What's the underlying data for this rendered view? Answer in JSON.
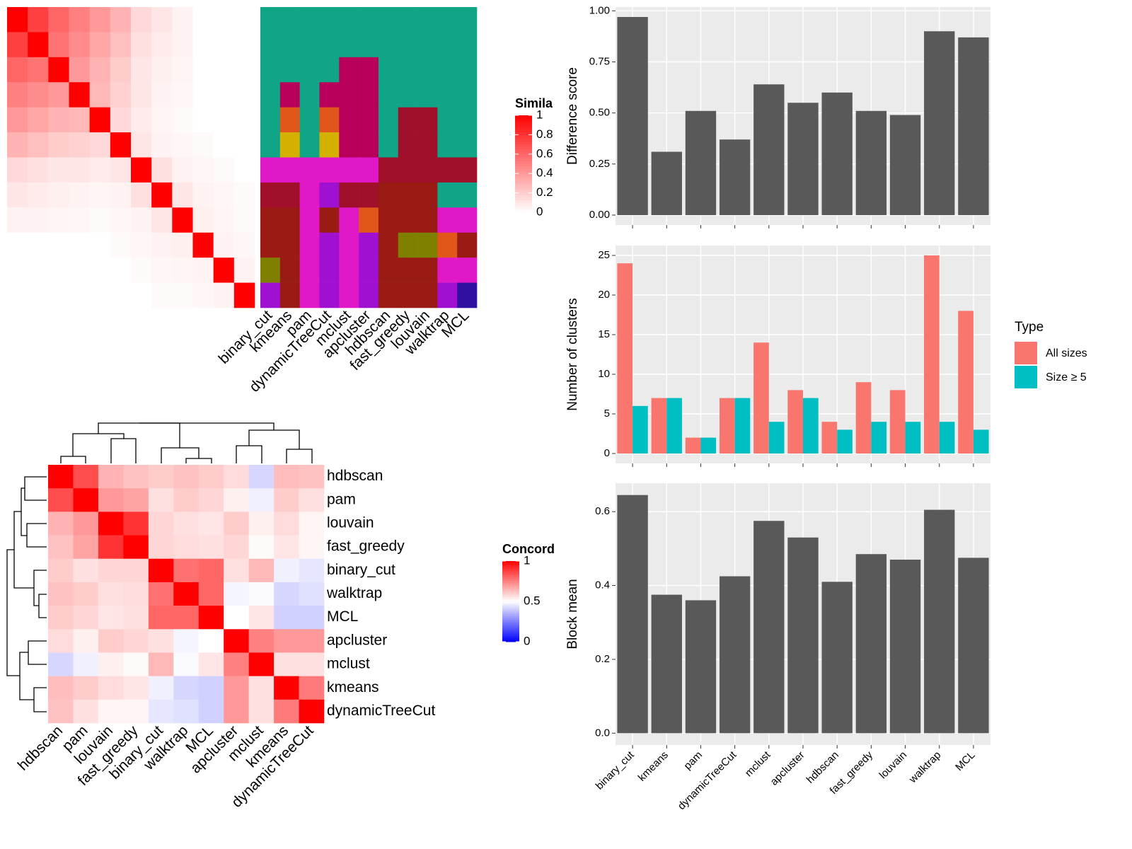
{
  "chart_data": [
    {
      "type": "heatmap",
      "values": [
        [
          1,
          0.75,
          0.6,
          0.5,
          0.4,
          0.3,
          0.15,
          0.1,
          0.05,
          0,
          0,
          0
        ],
        [
          0.75,
          1,
          0.55,
          0.45,
          0.35,
          0.25,
          0.12,
          0.08,
          0.05,
          0,
          0,
          0
        ],
        [
          0.6,
          0.55,
          1,
          0.4,
          0.3,
          0.2,
          0.1,
          0.06,
          0.04,
          0,
          0,
          0
        ],
        [
          0.5,
          0.45,
          0.4,
          1,
          0.28,
          0.18,
          0.1,
          0.05,
          0.03,
          0,
          0,
          0
        ],
        [
          0.4,
          0.35,
          0.3,
          0.28,
          1,
          0.15,
          0.08,
          0.04,
          0.02,
          0,
          0,
          0
        ],
        [
          0.3,
          0.25,
          0.2,
          0.18,
          0.15,
          1,
          0.1,
          0.05,
          0.03,
          0.02,
          0,
          0
        ],
        [
          0.15,
          0.12,
          0.1,
          0.1,
          0.08,
          0.1,
          1,
          0.12,
          0.05,
          0.03,
          0.02,
          0
        ],
        [
          0.1,
          0.08,
          0.06,
          0.05,
          0.04,
          0.05,
          0.12,
          1,
          0.1,
          0.05,
          0.03,
          0.02
        ],
        [
          0.05,
          0.05,
          0.04,
          0.03,
          0.02,
          0.03,
          0.05,
          0.1,
          1,
          0.06,
          0.04,
          0.02
        ],
        [
          0,
          0,
          0,
          0,
          0,
          0.02,
          0.03,
          0.05,
          0.06,
          1,
          0.05,
          0.03
        ],
        [
          0,
          0,
          0,
          0,
          0,
          0,
          0.02,
          0.03,
          0.04,
          0.05,
          1,
          0.05
        ],
        [
          0,
          0,
          0,
          0,
          0,
          0,
          0,
          0.02,
          0.02,
          0.03,
          0.05,
          1
        ]
      ],
      "legend_title": "Simila",
      "colorbar_ticks": [
        0,
        0.2,
        0.4,
        0.6,
        0.8,
        1
      ],
      "colors": [
        "#ffffff",
        "#ff0000"
      ]
    },
    {
      "type": "membership",
      "categories": [
        "binary_cut",
        "kmeans",
        "pam",
        "dynamicTreeCut",
        "mclust",
        "apcluster",
        "hdbscan",
        "fast_greedy",
        "louvain",
        "walktrap",
        "MCL"
      ],
      "colors": [
        [
          "#10a586",
          "#10a586",
          "#10a586",
          "#10a586",
          "#10a586",
          "#10a586",
          "#e018c8",
          "#a0102a",
          "#9a1a14",
          "#9a1a14",
          "#808000",
          "#a010d0"
        ],
        [
          "#10a586",
          "#10a586",
          "#10a586",
          "#b8005a",
          "#e0561b",
          "#d4b000",
          "#e018c8",
          "#a0102a",
          "#9a1a14",
          "#9a1a14",
          "#9a1a14",
          "#9a1a14"
        ],
        [
          "#10a586",
          "#10a586",
          "#10a586",
          "#10a586",
          "#10a586",
          "#10a586",
          "#e018c8",
          "#e018c8",
          "#e018c8",
          "#e018c8",
          "#e018c8",
          "#e018c8"
        ],
        [
          "#10a586",
          "#10a586",
          "#10a586",
          "#b8005a",
          "#e0561b",
          "#d4b000",
          "#e018c8",
          "#a010d0",
          "#9a1a14",
          "#a010d0",
          "#a010d0",
          "#a010d0"
        ],
        [
          "#10a586",
          "#10a586",
          "#b8005a",
          "#b8005a",
          "#b8005a",
          "#b8005a",
          "#e018c8",
          "#a0102a",
          "#e018c8",
          "#e018c8",
          "#e018c8",
          "#e018c8"
        ],
        [
          "#10a586",
          "#10a586",
          "#b8005a",
          "#b8005a",
          "#b8005a",
          "#b8005a",
          "#e018c8",
          "#a0102a",
          "#e0561b",
          "#a010d0",
          "#a010d0",
          "#a010d0"
        ],
        [
          "#10a586",
          "#10a586",
          "#10a586",
          "#10a586",
          "#10a586",
          "#10a586",
          "#a0102a",
          "#9a1a14",
          "#9a1a14",
          "#9a1a14",
          "#9a1a14",
          "#9a1a14"
        ],
        [
          "#10a586",
          "#10a586",
          "#10a586",
          "#10a586",
          "#a0102a",
          "#a0102a",
          "#a0102a",
          "#9a1a14",
          "#9a1a14",
          "#808000",
          "#9a1a14",
          "#9a1a14"
        ],
        [
          "#10a586",
          "#10a586",
          "#10a586",
          "#10a586",
          "#a0102a",
          "#a0102a",
          "#a0102a",
          "#9a1a14",
          "#9a1a14",
          "#808000",
          "#9a1a14",
          "#9a1a14"
        ],
        [
          "#10a586",
          "#10a586",
          "#10a586",
          "#10a586",
          "#10a586",
          "#10a586",
          "#a0102a",
          "#10a586",
          "#e018c8",
          "#e0561b",
          "#e018c8",
          "#a010d0"
        ],
        [
          "#10a586",
          "#10a586",
          "#10a586",
          "#10a586",
          "#10a586",
          "#10a586",
          "#a0102a",
          "#10a586",
          "#e018c8",
          "#9a1a14",
          "#e018c8",
          "#3010a0"
        ]
      ]
    },
    {
      "type": "heatmap",
      "categories": [
        "hdbscan",
        "pam",
        "louvain",
        "fast_greedy",
        "binary_cut",
        "walktrap",
        "MCL",
        "apcluster",
        "mclust",
        "kmeans",
        "dynamicTreeCut"
      ],
      "values": [
        [
          1,
          0.85,
          0.65,
          0.62,
          0.6,
          0.62,
          0.6,
          0.57,
          0.42,
          0.63,
          0.62
        ],
        [
          0.85,
          1,
          0.7,
          0.68,
          0.56,
          0.6,
          0.58,
          0.53,
          0.47,
          0.6,
          0.56
        ],
        [
          0.65,
          0.7,
          1,
          0.9,
          0.58,
          0.56,
          0.55,
          0.6,
          0.53,
          0.57,
          0.52
        ],
        [
          0.62,
          0.68,
          0.9,
          1,
          0.58,
          0.57,
          0.56,
          0.58,
          0.51,
          0.55,
          0.52
        ],
        [
          0.6,
          0.56,
          0.58,
          0.58,
          1,
          0.78,
          0.8,
          0.56,
          0.64,
          0.47,
          0.45
        ],
        [
          0.62,
          0.6,
          0.56,
          0.57,
          0.78,
          1,
          0.8,
          0.48,
          0.49,
          0.42,
          0.44
        ],
        [
          0.6,
          0.58,
          0.55,
          0.56,
          0.8,
          0.8,
          1,
          0.5,
          0.55,
          0.41,
          0.41
        ],
        [
          0.57,
          0.53,
          0.6,
          0.58,
          0.56,
          0.48,
          0.5,
          1,
          0.75,
          0.7,
          0.7
        ],
        [
          0.42,
          0.47,
          0.53,
          0.51,
          0.64,
          0.49,
          0.55,
          0.75,
          1,
          0.56,
          0.56
        ],
        [
          0.63,
          0.6,
          0.57,
          0.55,
          0.47,
          0.42,
          0.41,
          0.7,
          0.56,
          1,
          0.76
        ],
        [
          0.62,
          0.56,
          0.52,
          0.52,
          0.45,
          0.44,
          0.41,
          0.7,
          0.56,
          0.76,
          1
        ]
      ],
      "legend_title": "Concord",
      "colorbar_ticks": [
        0,
        0.5,
        1
      ],
      "colors": [
        "#0000ff",
        "#ffffff",
        "#ff0000"
      ]
    },
    {
      "type": "bar",
      "y_label": "Difference score",
      "values": [
        0.97,
        0.31,
        0.51,
        0.37,
        0.64,
        0.55,
        0.6,
        0.51,
        0.49,
        0.9,
        0.87
      ],
      "color": "#595959",
      "ylim": [
        -0.0485,
        1.0185
      ],
      "yticks": [
        {
          "value": 0,
          "label": "0.00"
        },
        {
          "value": 0.25,
          "label": "0.25"
        },
        {
          "value": 0.5,
          "label": "0.50"
        },
        {
          "value": 0.75,
          "label": "0.75"
        },
        {
          "value": 1,
          "label": "1.00"
        }
      ],
      "grid": true
    },
    {
      "type": "grouped_bar",
      "y_label": "Number of clusters",
      "legend_title": "Type",
      "series": [
        {
          "name": "All sizes",
          "color": "#f8766d",
          "values": [
            24,
            7,
            2,
            7,
            14,
            8,
            4,
            9,
            8,
            25,
            18
          ]
        },
        {
          "name": "Size ≥ 5",
          "color": "#00bfc4",
          "values": [
            6,
            7,
            2,
            7,
            4,
            7,
            3,
            4,
            4,
            4,
            3
          ]
        }
      ],
      "ylim": [
        -1.25,
        26.25
      ],
      "yticks": [
        0,
        5,
        10,
        15,
        20,
        25
      ],
      "grid": true
    },
    {
      "type": "bar",
      "y_label": "Block mean",
      "categories": [
        "binary_cut",
        "kmeans",
        "pam",
        "dynamicTreeCut",
        "mclust",
        "apcluster",
        "hdbscan",
        "fast_greedy",
        "louvain",
        "walktrap",
        "MCL"
      ],
      "values": [
        0.645,
        0.375,
        0.36,
        0.425,
        0.575,
        0.53,
        0.41,
        0.485,
        0.47,
        0.605,
        0.475
      ],
      "color": "#595959",
      "ylim": [
        -0.032,
        0.677
      ],
      "yticks": [
        {
          "value": 0,
          "label": "0.0"
        },
        0.2,
        0.4,
        0.6
      ],
      "grid": true
    }
  ]
}
